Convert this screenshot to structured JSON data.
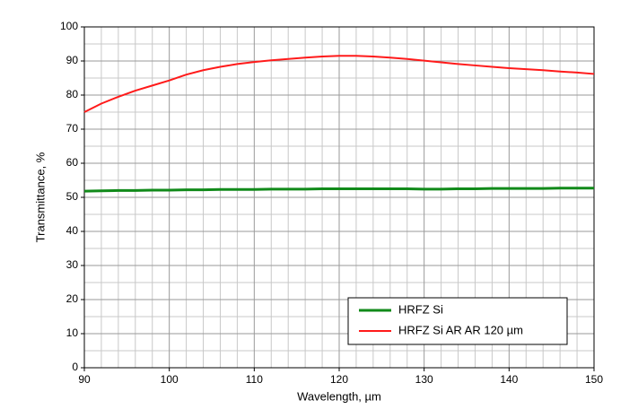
{
  "chart_data": {
    "type": "line",
    "x_label": "Wavelength, µm",
    "y_label": "Transmittance, %",
    "xlim": [
      90,
      150
    ],
    "ylim": [
      0,
      100
    ],
    "xticks": [
      90,
      100,
      110,
      120,
      130,
      140,
      150
    ],
    "yticks": [
      0,
      10,
      20,
      30,
      40,
      50,
      60,
      70,
      80,
      90,
      100
    ],
    "x_minor_ticks": [
      92,
      94,
      96,
      98,
      102,
      104,
      106,
      108,
      112,
      114,
      116,
      118,
      122,
      124,
      126,
      128,
      132,
      134,
      136,
      138,
      142,
      144,
      146,
      148
    ],
    "y_minor_ticks": [
      5,
      15,
      25,
      35,
      45,
      55,
      65,
      75,
      85,
      95
    ],
    "grid": true,
    "legend": "lower right",
    "x": [
      90,
      92,
      94,
      96,
      98,
      100,
      102,
      104,
      106,
      108,
      110,
      112,
      114,
      116,
      118,
      120,
      122,
      124,
      126,
      128,
      130,
      132,
      134,
      136,
      138,
      140,
      142,
      144,
      146,
      148,
      150
    ],
    "series": [
      {
        "name": "HRFZ Si",
        "color": "#118a1a",
        "width": 3,
        "values": [
          51.8,
          51.9,
          52.0,
          52.0,
          52.1,
          52.1,
          52.2,
          52.2,
          52.3,
          52.3,
          52.3,
          52.4,
          52.4,
          52.4,
          52.5,
          52.5,
          52.5,
          52.5,
          52.5,
          52.5,
          52.4,
          52.4,
          52.5,
          52.5,
          52.6,
          52.6,
          52.6,
          52.6,
          52.7,
          52.7,
          52.7
        ]
      },
      {
        "name": "HRFZ Si AR AR 120 µm",
        "color": "#ff1a1a",
        "width": 2,
        "values": [
          75.0,
          77.5,
          79.5,
          81.3,
          82.8,
          84.3,
          86.0,
          87.3,
          88.3,
          89.1,
          89.7,
          90.2,
          90.6,
          91.0,
          91.3,
          91.5,
          91.5,
          91.3,
          91.0,
          90.6,
          90.1,
          89.6,
          89.1,
          88.7,
          88.3,
          87.9,
          87.6,
          87.3,
          86.9,
          86.6,
          86.2
        ]
      }
    ]
  }
}
